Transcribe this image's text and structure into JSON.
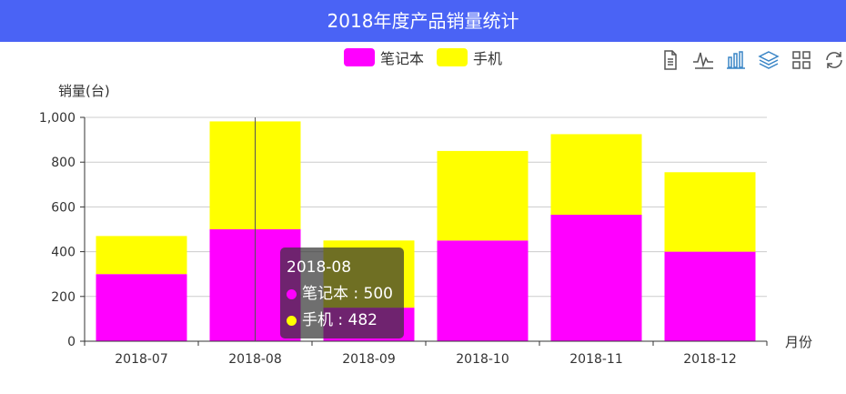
{
  "header": {
    "title": "2018年度产品销量统计"
  },
  "legend": {
    "items": [
      {
        "label": "笔记本",
        "color": "#ff00ff"
      },
      {
        "label": "手机",
        "color": "#ffff00"
      }
    ]
  },
  "toolbox": {
    "icons": [
      "data-view-icon",
      "line-chart-icon",
      "bar-chart-icon",
      "stack-icon",
      "tiled-icon",
      "restore-icon"
    ]
  },
  "tooltip": {
    "title": "2018-08",
    "rows": [
      {
        "label": "笔记本 : 500",
        "color": "#ff00ff"
      },
      {
        "label": "手机 : 482",
        "color": "#ffff00"
      }
    ]
  },
  "chart_data": {
    "type": "bar",
    "stacked": true,
    "title": "2018年度产品销量统计",
    "xlabel": "月份",
    "ylabel": "销量(台)",
    "categories": [
      "2018-07",
      "2018-08",
      "2018-09",
      "2018-10",
      "2018-11",
      "2018-12"
    ],
    "series": [
      {
        "name": "笔记本",
        "color": "#ff00ff",
        "values": [
          300,
          500,
          150,
          450,
          565,
          400
        ]
      },
      {
        "name": "手机",
        "color": "#ffff00",
        "values": [
          170,
          482,
          300,
          400,
          360,
          355
        ]
      }
    ],
    "ylim": [
      0,
      1000
    ],
    "yticks": [
      0,
      200,
      400,
      600,
      800,
      1000
    ],
    "ytick_labels": [
      "0",
      "200",
      "400",
      "600",
      "800",
      "1,000"
    ],
    "grid": true,
    "legend_position": "top-center"
  }
}
